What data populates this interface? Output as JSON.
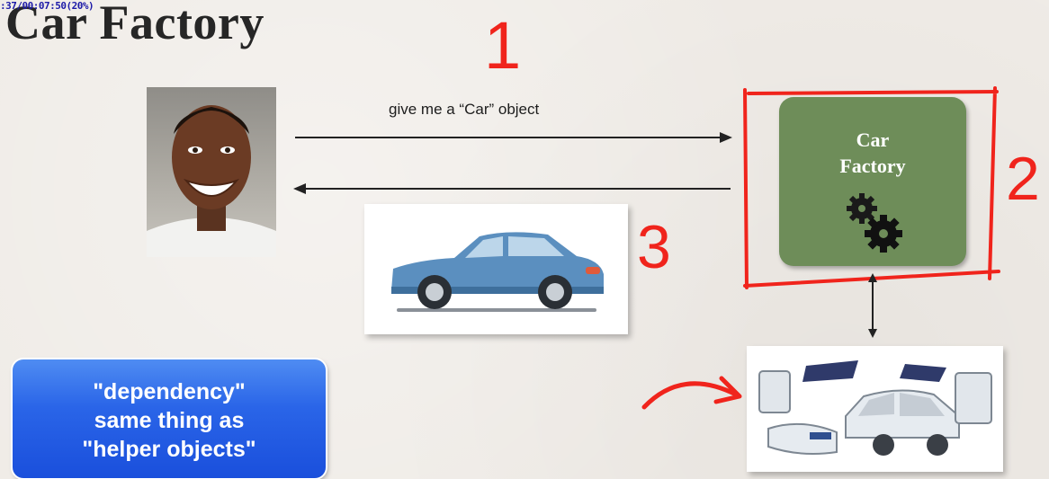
{
  "timestamp": ":37/00:07:50(20%)",
  "title": "Car Factory",
  "step_numbers": {
    "one": "1",
    "two": "2",
    "three": "3"
  },
  "request_label": "give me a “Car” object",
  "factory": {
    "line1": "Car",
    "line2": "Factory"
  },
  "note": {
    "line1": "\"dependency\"",
    "line2": "same thing as",
    "line3": "\"helper objects\""
  },
  "colors": {
    "annotation_red": "#f0241c",
    "factory_green": "#6e8d59",
    "note_blue": "#2a65e8",
    "car_blue": "#5b8fbf"
  }
}
